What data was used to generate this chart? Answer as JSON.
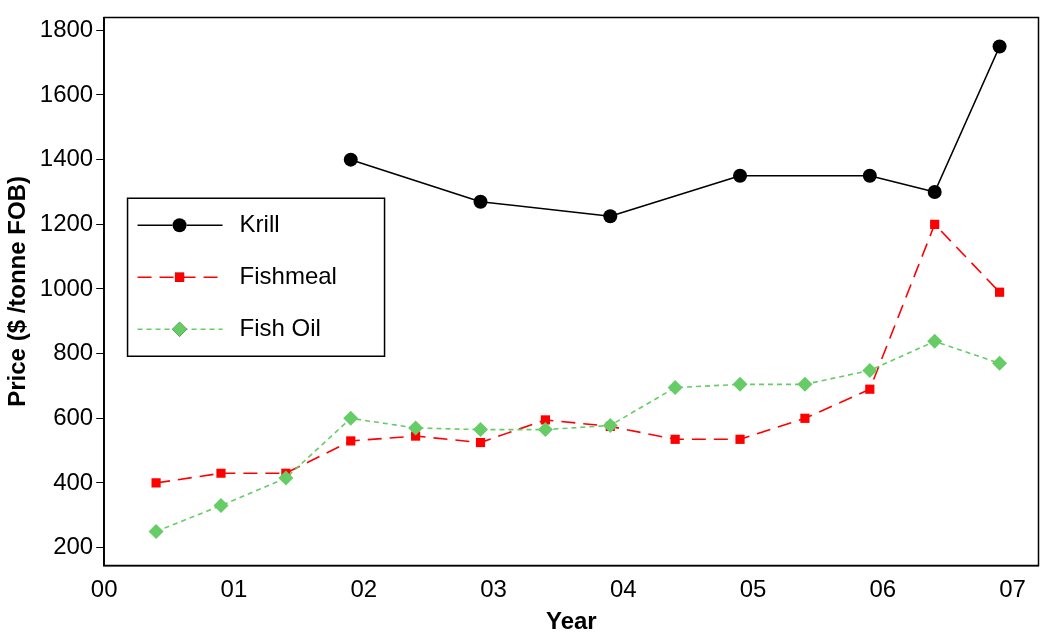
{
  "chart_data": {
    "type": "line",
    "xlabel": "Year",
    "ylabel": "Price ($ /tonne FOB)",
    "x": [
      0.4,
      0.9,
      1.4,
      1.9,
      2.4,
      2.9,
      3.4,
      3.9,
      4.4,
      4.9,
      5.4,
      5.9,
      6.4,
      6.9
    ],
    "xlim": [
      0,
      7.2
    ],
    "xticks": [
      {
        "value": 0,
        "label": "00"
      },
      {
        "value": 1,
        "label": "01"
      },
      {
        "value": 2,
        "label": "02"
      },
      {
        "value": 3,
        "label": "03"
      },
      {
        "value": 4,
        "label": "04"
      },
      {
        "value": 5,
        "label": "05"
      },
      {
        "value": 6,
        "label": "06"
      },
      {
        "value": 7,
        "label": "07"
      }
    ],
    "ylim": [
      145,
      1840
    ],
    "yticks": [
      200,
      400,
      600,
      800,
      1000,
      1200,
      1400,
      1600,
      1800
    ],
    "grid": false,
    "legend": "left",
    "series": [
      {
        "name": "Krill",
        "color": "#000000",
        "marker": "circle",
        "line_style": "solid",
        "x": [
          1.9,
          2.9,
          3.9,
          4.9,
          5.9,
          6.4,
          6.9
        ],
        "values": [
          1400,
          1270,
          1225,
          1350,
          1350,
          1300,
          1750
        ]
      },
      {
        "name": "Fishmeal",
        "color": "#ff0000",
        "marker": "square",
        "line_style": "dashed",
        "values": [
          400,
          430,
          430,
          530,
          545,
          525,
          595,
          575,
          535,
          535,
          600,
          690,
          1200,
          990
        ]
      },
      {
        "name": "Fish Oil",
        "color": "#66cc66",
        "marker": "diamond",
        "line_style": "dotted",
        "values": [
          250,
          330,
          415,
          600,
          570,
          565,
          565,
          578,
          695,
          705,
          705,
          748,
          838,
          770
        ]
      }
    ]
  }
}
